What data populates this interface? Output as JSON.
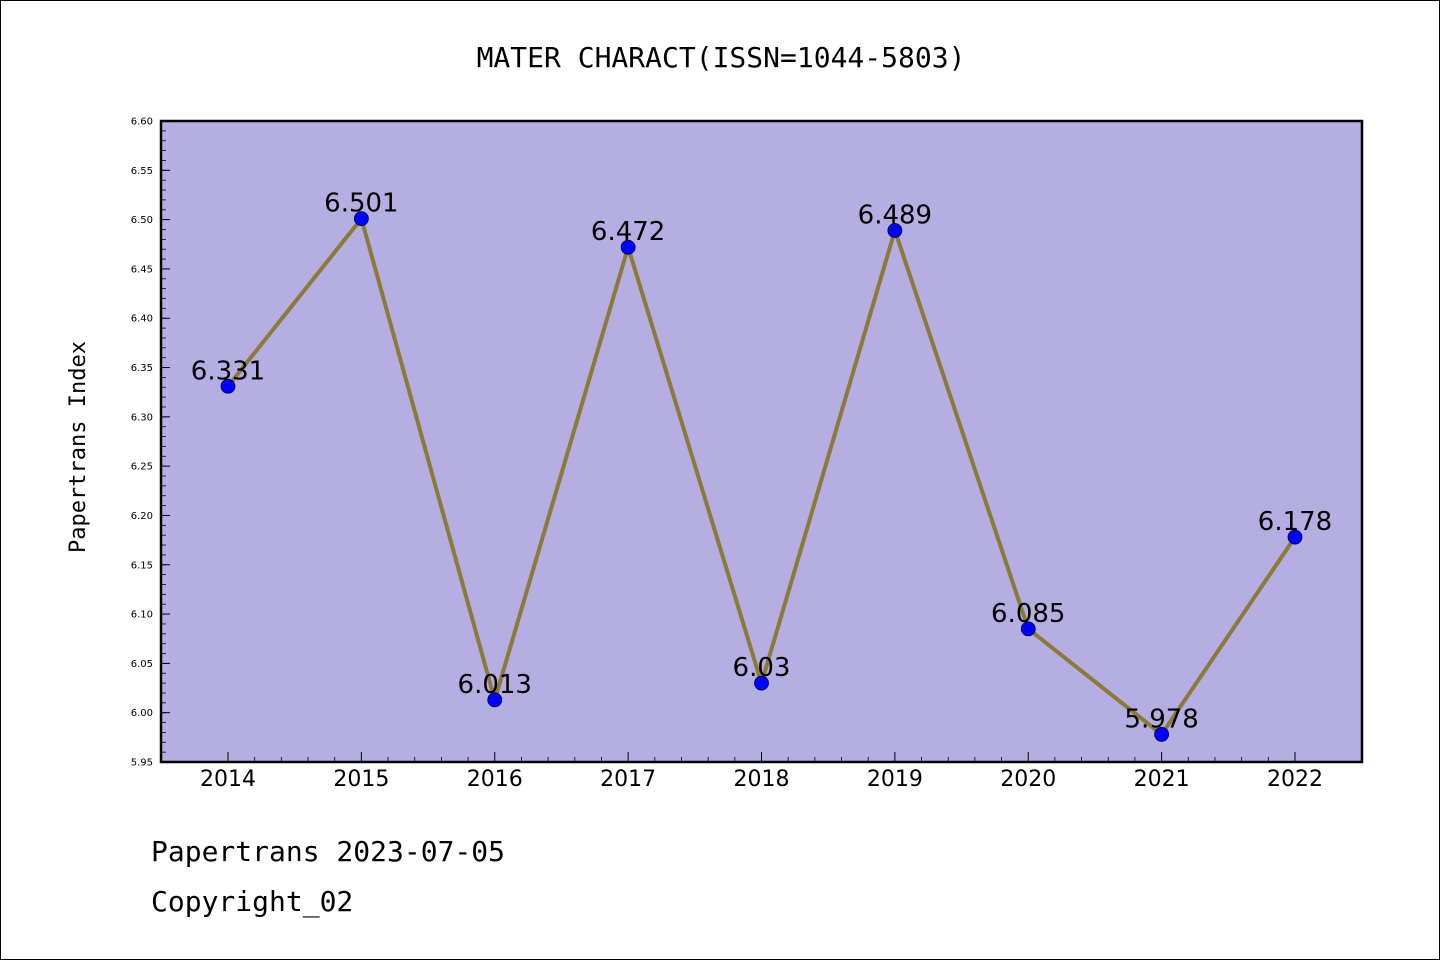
{
  "chart_data": {
    "type": "line",
    "title": "MATER CHARACT(ISSN=1044-5803)",
    "xlabel": "",
    "ylabel": "Papertrans Index",
    "categories": [
      "2014",
      "2015",
      "2016",
      "2017",
      "2018",
      "2019",
      "2020",
      "2021",
      "2022"
    ],
    "series": [
      {
        "values": [
          6.331,
          6.501,
          6.013,
          6.472,
          6.03,
          6.489,
          6.085,
          5.978,
          6.178
        ],
        "data_labels": [
          "6.331",
          "6.501",
          "6.013",
          "6.472",
          "6.03",
          "6.489",
          "6.085",
          "5.978",
          "6.178"
        ]
      }
    ],
    "ylim": [
      5.95,
      6.6
    ],
    "yticks": [
      "5.95",
      "6.00",
      "6.05",
      "6.10",
      "6.15",
      "6.20",
      "6.25",
      "6.30",
      "6.35",
      "6.40",
      "6.45",
      "6.50",
      "6.55",
      "6.60"
    ],
    "grid": false,
    "legend": "none",
    "colors": {
      "plot_background": "#b5aee2",
      "line": "#8b7a3a",
      "marker": "#0000ff",
      "axes": "#000000"
    }
  },
  "footer": {
    "line1": "Papertrans 2023-07-05",
    "line2": "Copyright_02"
  }
}
